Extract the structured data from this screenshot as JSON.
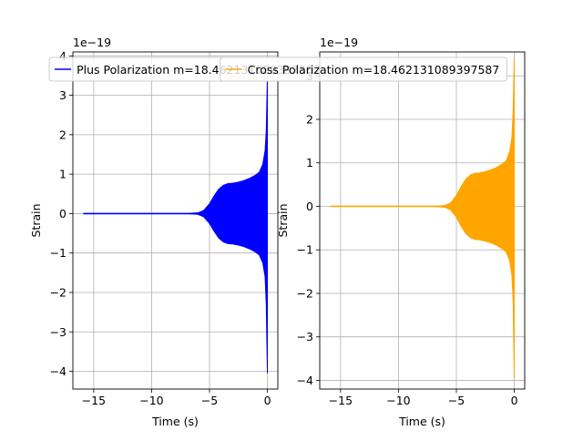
{
  "chart_data": [
    {
      "type": "line",
      "xlabel": "Time (s)",
      "ylabel": "Strain",
      "offset_text": "1e−19",
      "legend": "Plus Polarization m=18.462131089397587",
      "legend_placement": "top-center",
      "color": "#0000ff",
      "grid": true,
      "xlim": [
        -16.8,
        0.9
      ],
      "ylim": [
        -4.45,
        4.1
      ],
      "xticks": [
        -15,
        -10,
        -5,
        0
      ],
      "xtick_labels": [
        "−15",
        "−10",
        "−5",
        "0"
      ],
      "yticks": [
        -4,
        -3,
        -2,
        -1,
        0,
        1,
        2,
        3,
        4
      ],
      "ytick_labels": [
        "−4",
        "−3",
        "−2",
        "−1",
        "0",
        "1",
        "2",
        "3",
        "4"
      ],
      "envelope": {
        "t": [
          -15.9,
          -7.0,
          -6.0,
          -5.5,
          -5.0,
          -4.6,
          -4.2,
          -3.8,
          -3.4,
          -3.0,
          -2.5,
          -2.0,
          -1.5,
          -1.0,
          -0.7,
          -0.4,
          -0.2,
          -0.1,
          -0.05,
          0.0
        ],
        "upper": [
          0.0,
          0.0,
          0.02,
          0.08,
          0.25,
          0.45,
          0.62,
          0.72,
          0.76,
          0.77,
          0.8,
          0.84,
          0.9,
          0.98,
          1.05,
          1.25,
          1.6,
          2.1,
          2.8,
          3.5
        ],
        "lower": [
          0.0,
          0.0,
          -0.02,
          -0.08,
          -0.25,
          -0.45,
          -0.62,
          -0.72,
          -0.76,
          -0.77,
          -0.8,
          -0.84,
          -0.9,
          -0.98,
          -1.05,
          -1.25,
          -1.6,
          -2.3,
          -3.2,
          -4.05
        ]
      }
    },
    {
      "type": "line",
      "xlabel": "Time (s)",
      "ylabel": "Strain",
      "offset_text": "1e−19",
      "legend": "Cross Polarization m=18.462131089397587",
      "legend_placement": "top-center",
      "color": "#ffa500",
      "grid": true,
      "xlim": [
        -16.8,
        0.9
      ],
      "ylim": [
        -4.2,
        3.55
      ],
      "xticks": [
        -15,
        -10,
        -5,
        0
      ],
      "xtick_labels": [
        "−15",
        "−10",
        "−5",
        "0"
      ],
      "yticks": [
        -4,
        -3,
        -2,
        -1,
        0,
        1,
        2,
        3
      ],
      "ytick_labels": [
        "−4",
        "−3",
        "−2",
        "−1",
        "0",
        "1",
        "2",
        "3"
      ],
      "envelope": {
        "t": [
          -15.9,
          -7.0,
          -6.0,
          -5.5,
          -5.0,
          -4.6,
          -4.2,
          -3.8,
          -3.4,
          -3.0,
          -2.5,
          -2.0,
          -1.5,
          -1.0,
          -0.7,
          -0.4,
          -0.2,
          -0.1,
          -0.05,
          0.0
        ],
        "upper": [
          0.0,
          0.0,
          0.02,
          0.08,
          0.25,
          0.45,
          0.62,
          0.72,
          0.76,
          0.77,
          0.8,
          0.84,
          0.9,
          0.98,
          1.05,
          1.25,
          1.6,
          2.2,
          2.8,
          3.4
        ],
        "lower": [
          0.0,
          0.0,
          -0.02,
          -0.08,
          -0.25,
          -0.45,
          -0.62,
          -0.72,
          -0.76,
          -0.77,
          -0.8,
          -0.84,
          -0.9,
          -0.98,
          -1.05,
          -1.25,
          -1.6,
          -2.2,
          -3.1,
          -3.95
        ]
      }
    }
  ]
}
